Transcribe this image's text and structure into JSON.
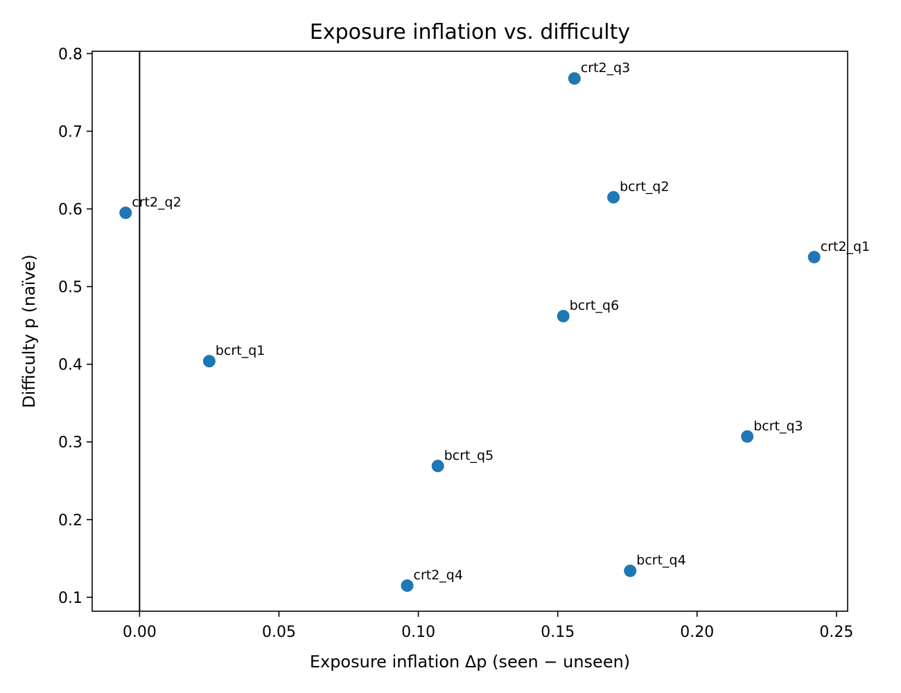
{
  "chart_data": {
    "type": "scatter",
    "title": "Exposure inflation vs. difficulty",
    "xlabel": "Exposure inflation Δp (seen − unseen)",
    "ylabel": "Difficulty p (naïve)",
    "xlim": [
      -0.017,
      0.254
    ],
    "ylim": [
      0.082,
      0.803
    ],
    "x_ticks": [
      0.0,
      0.05,
      0.1,
      0.15,
      0.2,
      0.25
    ],
    "x_tick_labels": [
      "0.00",
      "0.05",
      "0.10",
      "0.15",
      "0.20",
      "0.25"
    ],
    "y_ticks": [
      0.1,
      0.2,
      0.3,
      0.4,
      0.5,
      0.6,
      0.7,
      0.8
    ],
    "y_tick_labels": [
      "0.1",
      "0.2",
      "0.3",
      "0.4",
      "0.5",
      "0.6",
      "0.7",
      "0.8"
    ],
    "reference_line_x": 0.0,
    "grid": false,
    "point_color": "#1f77b4",
    "points": [
      {
        "label": "crt2_q3",
        "x": 0.156,
        "y": 0.768
      },
      {
        "label": "bcrt_q2",
        "x": 0.17,
        "y": 0.615
      },
      {
        "label": "crt2_q2",
        "x": -0.005,
        "y": 0.595
      },
      {
        "label": "crt2_q1",
        "x": 0.242,
        "y": 0.538
      },
      {
        "label": "bcrt_q6",
        "x": 0.152,
        "y": 0.462
      },
      {
        "label": "bcrt_q1",
        "x": 0.025,
        "y": 0.404
      },
      {
        "label": "bcrt_q3",
        "x": 0.218,
        "y": 0.307
      },
      {
        "label": "bcrt_q5",
        "x": 0.107,
        "y": 0.269
      },
      {
        "label": "bcrt_q4",
        "x": 0.176,
        "y": 0.134
      },
      {
        "label": "crt2_q4",
        "x": 0.096,
        "y": 0.115
      }
    ]
  }
}
